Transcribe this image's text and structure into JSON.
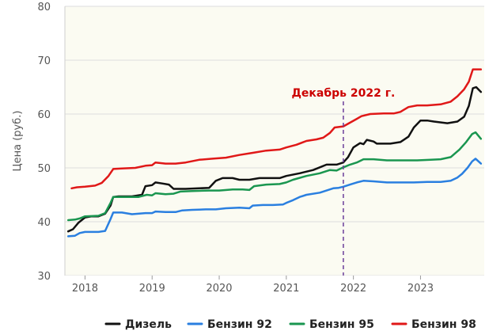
{
  "chart_data": {
    "type": "line",
    "ylabel": "Цена (руб.)",
    "xlabel": "",
    "ylim": [
      30,
      80
    ],
    "y_ticks": [
      "30",
      "40",
      "50",
      "60",
      "70",
      "80"
    ],
    "xlim": [
      2017.7,
      2023.95
    ],
    "x_ticks": [
      "2018",
      "2019",
      "2020",
      "2021",
      "2022",
      "2023"
    ],
    "grid": "horizontal",
    "legend_position": "bottom",
    "background": "#fbfbf2",
    "annotation": {
      "text": "Декабрь 2022 г.",
      "x": 2021.85,
      "color": "#cc0000",
      "line_color": "#6a3d9a"
    },
    "series": [
      {
        "name": "Дизель",
        "color": "#111111",
        "points": [
          [
            2017.75,
            38.2
          ],
          [
            2017.82,
            38.6
          ],
          [
            2017.9,
            39.8
          ],
          [
            2018.0,
            40.8
          ],
          [
            2018.1,
            41.0
          ],
          [
            2018.2,
            41.0
          ],
          [
            2018.3,
            41.5
          ],
          [
            2018.38,
            43.0
          ],
          [
            2018.42,
            44.6
          ],
          [
            2018.5,
            44.7
          ],
          [
            2018.7,
            44.7
          ],
          [
            2018.85,
            45.0
          ],
          [
            2018.9,
            46.6
          ],
          [
            2019.0,
            46.8
          ],
          [
            2019.05,
            47.3
          ],
          [
            2019.15,
            47.1
          ],
          [
            2019.25,
            46.9
          ],
          [
            2019.32,
            46.1
          ],
          [
            2019.5,
            46.1
          ],
          [
            2019.7,
            46.2
          ],
          [
            2019.85,
            46.3
          ],
          [
            2019.95,
            47.6
          ],
          [
            2020.05,
            48.1
          ],
          [
            2020.2,
            48.1
          ],
          [
            2020.3,
            47.8
          ],
          [
            2020.45,
            47.8
          ],
          [
            2020.6,
            48.1
          ],
          [
            2020.9,
            48.1
          ],
          [
            2021.0,
            48.5
          ],
          [
            2021.2,
            49.0
          ],
          [
            2021.4,
            49.6
          ],
          [
            2021.5,
            50.1
          ],
          [
            2021.6,
            50.6
          ],
          [
            2021.75,
            50.6
          ],
          [
            2021.85,
            51.0
          ],
          [
            2021.92,
            52.0
          ],
          [
            2022.0,
            53.8
          ],
          [
            2022.1,
            54.6
          ],
          [
            2022.15,
            54.4
          ],
          [
            2022.2,
            55.2
          ],
          [
            2022.3,
            54.9
          ],
          [
            2022.35,
            54.5
          ],
          [
            2022.55,
            54.5
          ],
          [
            2022.7,
            54.8
          ],
          [
            2022.82,
            55.8
          ],
          [
            2022.9,
            57.5
          ],
          [
            2023.0,
            58.8
          ],
          [
            2023.1,
            58.8
          ],
          [
            2023.2,
            58.6
          ],
          [
            2023.4,
            58.3
          ],
          [
            2023.55,
            58.6
          ],
          [
            2023.65,
            59.5
          ],
          [
            2023.72,
            61.5
          ],
          [
            2023.78,
            64.8
          ],
          [
            2023.83,
            65.0
          ],
          [
            2023.9,
            64.1
          ]
        ]
      },
      {
        "name": "Бензин 92",
        "color": "#2a7fe0",
        "points": [
          [
            2017.75,
            37.3
          ],
          [
            2017.85,
            37.4
          ],
          [
            2017.92,
            37.9
          ],
          [
            2018.0,
            38.1
          ],
          [
            2018.2,
            38.1
          ],
          [
            2018.3,
            38.3
          ],
          [
            2018.38,
            40.5
          ],
          [
            2018.42,
            41.7
          ],
          [
            2018.55,
            41.7
          ],
          [
            2018.7,
            41.4
          ],
          [
            2018.9,
            41.6
          ],
          [
            2019.0,
            41.6
          ],
          [
            2019.05,
            41.9
          ],
          [
            2019.2,
            41.8
          ],
          [
            2019.35,
            41.8
          ],
          [
            2019.45,
            42.1
          ],
          [
            2019.6,
            42.2
          ],
          [
            2019.8,
            42.3
          ],
          [
            2019.95,
            42.3
          ],
          [
            2020.1,
            42.5
          ],
          [
            2020.3,
            42.6
          ],
          [
            2020.45,
            42.5
          ],
          [
            2020.5,
            43.0
          ],
          [
            2020.65,
            43.1
          ],
          [
            2020.8,
            43.1
          ],
          [
            2020.95,
            43.2
          ],
          [
            2021.0,
            43.5
          ],
          [
            2021.1,
            44.0
          ],
          [
            2021.2,
            44.6
          ],
          [
            2021.3,
            45.0
          ],
          [
            2021.5,
            45.4
          ],
          [
            2021.6,
            45.8
          ],
          [
            2021.7,
            46.2
          ],
          [
            2021.78,
            46.3
          ],
          [
            2021.85,
            46.5
          ],
          [
            2021.95,
            46.9
          ],
          [
            2022.05,
            47.3
          ],
          [
            2022.15,
            47.6
          ],
          [
            2022.3,
            47.5
          ],
          [
            2022.5,
            47.3
          ],
          [
            2022.7,
            47.3
          ],
          [
            2022.9,
            47.3
          ],
          [
            2023.1,
            47.4
          ],
          [
            2023.3,
            47.4
          ],
          [
            2023.45,
            47.6
          ],
          [
            2023.55,
            48.2
          ],
          [
            2023.62,
            48.9
          ],
          [
            2023.7,
            50.0
          ],
          [
            2023.77,
            51.2
          ],
          [
            2023.82,
            51.7
          ],
          [
            2023.9,
            50.8
          ]
        ]
      },
      {
        "name": "Бензин 95",
        "color": "#1a9650",
        "points": [
          [
            2017.75,
            40.3
          ],
          [
            2017.85,
            40.4
          ],
          [
            2017.92,
            40.6
          ],
          [
            2018.0,
            41.0
          ],
          [
            2018.2,
            41.1
          ],
          [
            2018.3,
            41.6
          ],
          [
            2018.38,
            43.5
          ],
          [
            2018.42,
            44.6
          ],
          [
            2018.6,
            44.6
          ],
          [
            2018.8,
            44.6
          ],
          [
            2018.92,
            45.0
          ],
          [
            2019.0,
            44.9
          ],
          [
            2019.05,
            45.3
          ],
          [
            2019.2,
            45.1
          ],
          [
            2019.32,
            45.2
          ],
          [
            2019.42,
            45.6
          ],
          [
            2019.6,
            45.7
          ],
          [
            2019.85,
            45.8
          ],
          [
            2020.0,
            45.8
          ],
          [
            2020.2,
            46.0
          ],
          [
            2020.35,
            46.0
          ],
          [
            2020.45,
            45.9
          ],
          [
            2020.52,
            46.6
          ],
          [
            2020.7,
            46.9
          ],
          [
            2020.9,
            47.0
          ],
          [
            2021.0,
            47.3
          ],
          [
            2021.1,
            47.8
          ],
          [
            2021.3,
            48.5
          ],
          [
            2021.5,
            49.0
          ],
          [
            2021.65,
            49.6
          ],
          [
            2021.75,
            49.5
          ],
          [
            2021.85,
            50.1
          ],
          [
            2021.95,
            50.6
          ],
          [
            2022.05,
            51.0
          ],
          [
            2022.15,
            51.6
          ],
          [
            2022.3,
            51.6
          ],
          [
            2022.5,
            51.4
          ],
          [
            2022.75,
            51.4
          ],
          [
            2022.95,
            51.4
          ],
          [
            2023.15,
            51.5
          ],
          [
            2023.3,
            51.6
          ],
          [
            2023.45,
            52.0
          ],
          [
            2023.58,
            53.4
          ],
          [
            2023.68,
            54.8
          ],
          [
            2023.77,
            56.3
          ],
          [
            2023.82,
            56.6
          ],
          [
            2023.9,
            55.4
          ]
        ]
      },
      {
        "name": "Бензин 98",
        "color": "#e01818",
        "points": [
          [
            2017.8,
            46.2
          ],
          [
            2017.88,
            46.4
          ],
          [
            2018.0,
            46.5
          ],
          [
            2018.15,
            46.7
          ],
          [
            2018.25,
            47.2
          ],
          [
            2018.35,
            48.5
          ],
          [
            2018.42,
            49.8
          ],
          [
            2018.55,
            49.9
          ],
          [
            2018.75,
            50.0
          ],
          [
            2018.9,
            50.4
          ],
          [
            2019.0,
            50.5
          ],
          [
            2019.05,
            51.0
          ],
          [
            2019.2,
            50.8
          ],
          [
            2019.35,
            50.8
          ],
          [
            2019.5,
            51.0
          ],
          [
            2019.7,
            51.5
          ],
          [
            2019.9,
            51.7
          ],
          [
            2020.1,
            51.9
          ],
          [
            2020.3,
            52.4
          ],
          [
            2020.5,
            52.8
          ],
          [
            2020.7,
            53.2
          ],
          [
            2020.9,
            53.4
          ],
          [
            2021.0,
            53.8
          ],
          [
            2021.15,
            54.3
          ],
          [
            2021.3,
            55.0
          ],
          [
            2021.45,
            55.3
          ],
          [
            2021.55,
            55.6
          ],
          [
            2021.65,
            56.5
          ],
          [
            2021.72,
            57.5
          ],
          [
            2021.85,
            57.7
          ],
          [
            2021.95,
            58.4
          ],
          [
            2022.05,
            59.1
          ],
          [
            2022.12,
            59.6
          ],
          [
            2022.25,
            60.0
          ],
          [
            2022.45,
            60.1
          ],
          [
            2022.6,
            60.1
          ],
          [
            2022.7,
            60.4
          ],
          [
            2022.82,
            61.3
          ],
          [
            2022.95,
            61.6
          ],
          [
            2023.1,
            61.6
          ],
          [
            2023.3,
            61.8
          ],
          [
            2023.45,
            62.3
          ],
          [
            2023.55,
            63.3
          ],
          [
            2023.65,
            64.6
          ],
          [
            2023.72,
            66.0
          ],
          [
            2023.78,
            68.3
          ],
          [
            2023.9,
            68.3
          ]
        ]
      }
    ]
  }
}
